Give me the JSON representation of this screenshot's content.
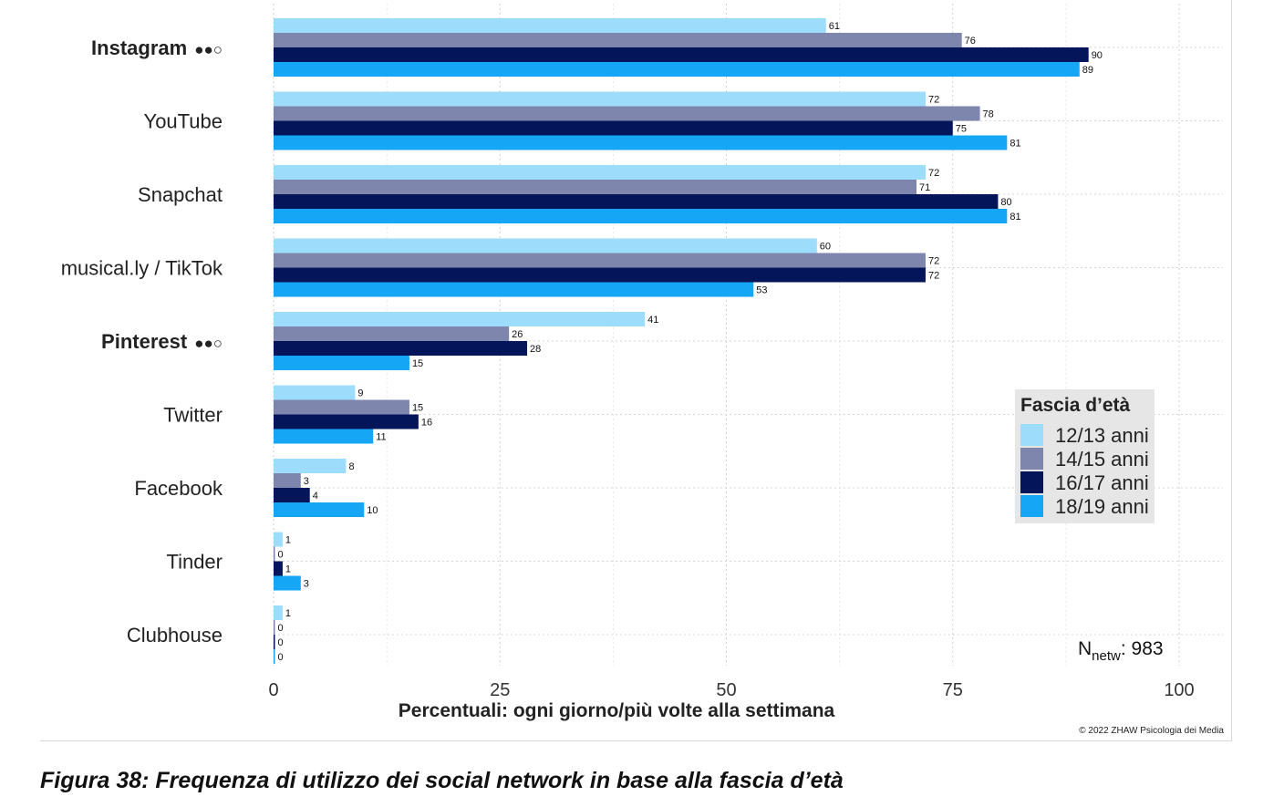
{
  "chart_data": {
    "type": "bar",
    "orientation": "horizontal",
    "categories": [
      "Instagram",
      "YouTube",
      "Snapchat",
      "musical.ly / TikTok",
      "Pinterest",
      "Twitter",
      "Facebook",
      "Tinder",
      "Clubhouse"
    ],
    "category_markers": [
      "●●○",
      "",
      "",
      "",
      "●●○",
      "",
      "",
      "",
      ""
    ],
    "bold_categories": [
      true,
      false,
      false,
      false,
      true,
      false,
      false,
      false,
      false
    ],
    "series": [
      {
        "name": "12/13 anni",
        "color": "#9ddcfa",
        "values": [
          61,
          72,
          72,
          60,
          41,
          9,
          8,
          1,
          1
        ]
      },
      {
        "name": "14/15 anni",
        "color": "#7e86ad",
        "values": [
          76,
          78,
          71,
          72,
          26,
          15,
          3,
          0,
          0
        ]
      },
      {
        "name": "16/17 anni",
        "color": "#05155a",
        "values": [
          90,
          75,
          80,
          72,
          28,
          16,
          4,
          1,
          0
        ]
      },
      {
        "name": "18/19 anni",
        "color": "#15a6f5",
        "values": [
          89,
          81,
          81,
          53,
          15,
          11,
          10,
          3,
          0
        ]
      }
    ],
    "xlabel": "Percentuali: ogni giorno/più volte alla settimana",
    "xlim": [
      0,
      100
    ],
    "xticks": [
      0,
      25,
      50,
      75,
      100
    ],
    "grid": true,
    "legend": {
      "title": "Fascia d’età",
      "placement": "right"
    },
    "n_label": {
      "symbol": "N",
      "subscript": "netw",
      "value": ": 983"
    },
    "copyright": "© 2022 ZHAW Psicologia dei Media"
  },
  "caption": "Figura 38: Frequenza di utilizzo dei social network in base alla fascia d’età"
}
